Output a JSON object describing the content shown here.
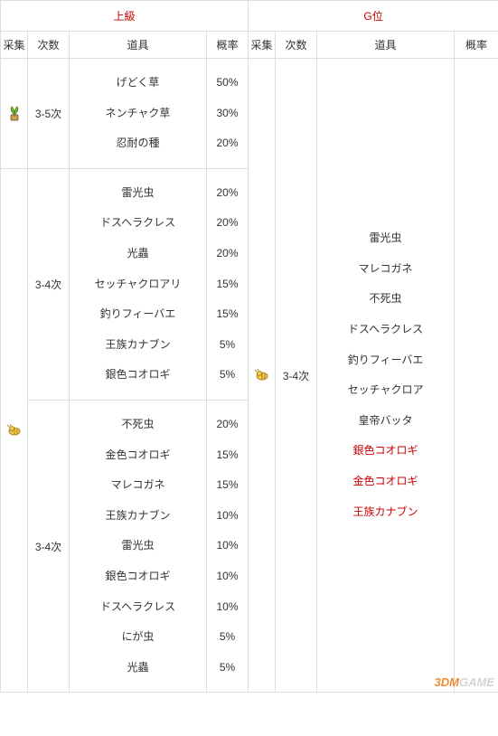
{
  "headers": {
    "tier_upper": "上級",
    "tier_g": "G位",
    "gather": "采集",
    "times": "次数",
    "item": "道具",
    "rate": "概率"
  },
  "icons": {
    "plant": {
      "fill": "#7bbf3a",
      "accent": "#4e8c1f"
    },
    "bug": {
      "fill": "#f0c850",
      "accent": "#b08820"
    }
  },
  "upper": {
    "row1": {
      "icon": "plant",
      "times": "3-5次",
      "items": [
        "げどく草",
        "ネンチャク草",
        "忍耐の種"
      ],
      "rates": [
        "50%",
        "30%",
        "20%"
      ]
    },
    "row2": {
      "icon": "bug",
      "subA": {
        "times": "3-4次",
        "items": [
          "雷光虫",
          "ドスヘラクレス",
          "光蟲",
          "セッチャクロアリ",
          "釣りフィーバエ",
          "王族カナブン",
          "銀色コオロギ"
        ],
        "rates": [
          "20%",
          "20%",
          "20%",
          "15%",
          "15%",
          "5%",
          "5%"
        ]
      },
      "subB": {
        "times": "3-4次",
        "items": [
          "不死虫",
          "金色コオロギ",
          "マレコガネ",
          "王族カナブン",
          "雷光虫",
          "銀色コオロギ",
          "ドスヘラクレス",
          "にが虫",
          "光蟲"
        ],
        "rates": [
          "20%",
          "15%",
          "15%",
          "10%",
          "10%",
          "10%",
          "10%",
          "5%",
          "5%"
        ]
      }
    }
  },
  "grank": {
    "icon": "bug",
    "times": "3-4次",
    "items": [
      {
        "t": "雷光虫",
        "red": false
      },
      {
        "t": "マレコガネ",
        "red": false
      },
      {
        "t": "不死虫",
        "red": false
      },
      {
        "t": "ドスヘラクレス",
        "red": false
      },
      {
        "t": "釣りフィーバエ",
        "red": false
      },
      {
        "t": "セッチャクロア",
        "red": false
      },
      {
        "t": "皇帝バッタ",
        "red": false
      },
      {
        "t": "銀色コオロギ",
        "red": true
      },
      {
        "t": "金色コオロギ",
        "red": true
      },
      {
        "t": "王族カナブン",
        "red": true
      }
    ]
  },
  "watermark": {
    "brand": "3DM",
    "suffix": "GAME"
  },
  "colors": {
    "border": "#dddddd",
    "red_text": "#cc0000",
    "text": "#333333",
    "background": "#ffffff"
  }
}
